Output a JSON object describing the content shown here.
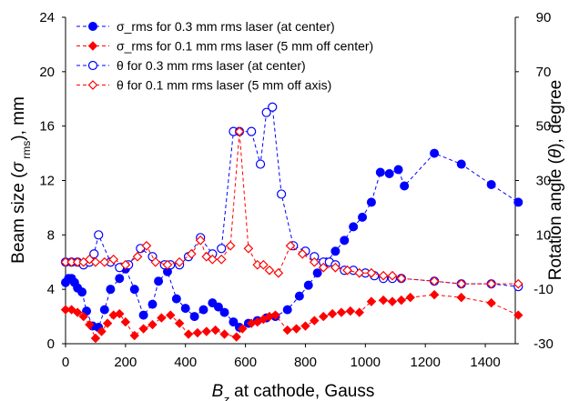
{
  "chart_data": {
    "type": "scatter",
    "title": "",
    "xlabel_parts": {
      "var": "B",
      "sub": "z",
      "rest": " at cathode, Gauss"
    },
    "ylabel_parts": {
      "pre": "Beam size (",
      "sym": "σ",
      "sub": " rms",
      "post": "), mm"
    },
    "y2label_parts": {
      "pre": "Rotation angle (",
      "sym": "θ",
      "post": "), degree"
    },
    "xlim": [
      0,
      1500
    ],
    "ylim": [
      0,
      24
    ],
    "y2lim": [
      -30,
      90
    ],
    "xticks": [
      0,
      200,
      400,
      600,
      800,
      1000,
      1200,
      1400
    ],
    "yticks": [
      0,
      4,
      8,
      12,
      16,
      20,
      24
    ],
    "y2ticks": [
      -30,
      -10,
      10,
      30,
      50,
      70,
      90
    ],
    "grid": false,
    "legend_position": "top-left",
    "series": [
      {
        "name": "σ_rms for 0.3 mm rms laser (at center)",
        "axis": "left",
        "color": "#0000ff",
        "marker": "filled-circle",
        "x": [
          0,
          10,
          20,
          30,
          40,
          55,
          70,
          90,
          110,
          130,
          150,
          180,
          200,
          230,
          260,
          290,
          310,
          340,
          370,
          400,
          430,
          460,
          490,
          510,
          530,
          560,
          580,
          610,
          640,
          670,
          700,
          740,
          780,
          810,
          840,
          870,
          900,
          930,
          960,
          990,
          1020,
          1050,
          1080,
          1110,
          1130,
          1230,
          1320,
          1420,
          1510
        ],
        "y": [
          4.5,
          4.8,
          4.8,
          4.5,
          4.1,
          3.8,
          2.4,
          1.3,
          1.2,
          2.5,
          4.0,
          4.8,
          5.5,
          4.0,
          2.1,
          2.9,
          4.6,
          5.3,
          3.3,
          2.6,
          2.0,
          2.5,
          3.0,
          2.7,
          2.3,
          1.6,
          1.2,
          1.5,
          1.7,
          1.9,
          2.0,
          2.5,
          3.5,
          4.3,
          5.2,
          6.0,
          6.8,
          7.6,
          8.6,
          9.3,
          10.4,
          12.6,
          12.5,
          12.8,
          11.6,
          14.0,
          13.2,
          11.7,
          10.4
        ]
      },
      {
        "name": "σ_rms for 0.1 mm rms laser (5 mm off center)",
        "axis": "left",
        "color": "#ff0000",
        "marker": "filled-diamond",
        "x": [
          0,
          20,
          40,
          60,
          80,
          100,
          120,
          140,
          160,
          180,
          200,
          230,
          260,
          290,
          320,
          350,
          380,
          410,
          440,
          470,
          500,
          530,
          570,
          590,
          620,
          640,
          660,
          680,
          700,
          740,
          770,
          800,
          830,
          860,
          890,
          920,
          950,
          980,
          1020,
          1060,
          1090,
          1120,
          1150,
          1230,
          1320,
          1420,
          1510
        ],
        "y": [
          2.5,
          2.5,
          2.3,
          2.0,
          1.4,
          0.4,
          0.9,
          1.5,
          2.1,
          2.2,
          1.6,
          0.6,
          1.1,
          1.4,
          1.9,
          2.1,
          1.5,
          0.7,
          0.8,
          0.9,
          1.0,
          0.7,
          0.5,
          1.1,
          1.5,
          1.6,
          1.8,
          2.0,
          2.1,
          1.0,
          1.1,
          1.3,
          1.7,
          2.0,
          2.2,
          2.3,
          2.4,
          2.3,
          3.1,
          3.2,
          3.1,
          3.2,
          3.4,
          3.6,
          3.4,
          3.0,
          2.1
        ]
      },
      {
        "name": "θ for 0.3 mm rms laser (at center)",
        "axis": "right",
        "color": "#0000ff",
        "marker": "open-circle",
        "x": [
          0,
          20,
          40,
          60,
          80,
          95,
          110,
          150,
          180,
          210,
          250,
          290,
          330,
          350,
          380,
          410,
          450,
          490,
          520,
          560,
          580,
          620,
          650,
          670,
          690,
          720,
          760,
          800,
          830,
          860,
          880,
          900,
          930,
          960,
          1000,
          1030,
          1060,
          1090,
          1120,
          1230,
          1320,
          1420,
          1510
        ],
        "y": [
          0,
          0,
          0,
          -1,
          0,
          3,
          10,
          0,
          -2,
          -1,
          5,
          2,
          -1,
          -1,
          -1,
          2,
          9,
          3,
          5,
          48,
          48,
          48,
          36,
          55,
          57,
          25,
          6,
          4,
          2,
          0,
          0,
          -1,
          -3,
          -3,
          -4,
          -5,
          -6,
          -6,
          -6,
          -7,
          -8,
          -8,
          -9
        ]
      },
      {
        "name": "θ for 0.1 mm rms laser (5 mm off axis)",
        "axis": "right",
        "color": "#ff0000",
        "marker": "open-diamond",
        "x": [
          0,
          20,
          40,
          60,
          80,
          100,
          130,
          160,
          200,
          240,
          270,
          300,
          340,
          380,
          420,
          450,
          470,
          490,
          520,
          550,
          580,
          610,
          640,
          660,
          680,
          710,
          750,
          790,
          830,
          860,
          900,
          940,
          980,
          1020,
          1060,
          1090,
          1120,
          1230,
          1320,
          1420,
          1510
        ],
        "y": [
          0,
          0,
          0,
          0,
          1,
          0,
          0,
          1,
          -1,
          2,
          6,
          0,
          -1,
          0,
          3,
          8,
          2,
          1,
          1,
          6,
          48,
          5,
          -1,
          -1,
          -3,
          -4,
          6,
          3,
          0,
          -2,
          -2,
          -3,
          -4,
          -4,
          -5,
          -5,
          -6,
          -7,
          -8,
          -8,
          -8
        ]
      }
    ]
  }
}
